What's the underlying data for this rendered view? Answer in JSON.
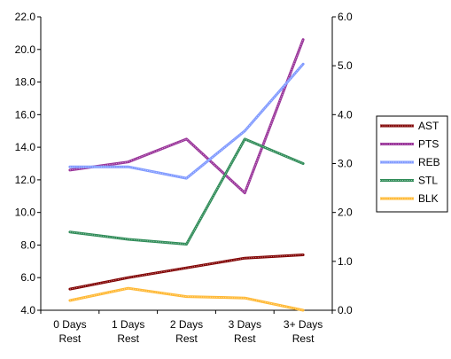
{
  "chart_data": {
    "type": "line",
    "title": "",
    "categories": [
      "0 Days Rest",
      "1 Days Rest",
      "2 Days Rest",
      "3 Days Rest",
      "3+ Days Rest"
    ],
    "category_lines": [
      [
        "0 Days",
        "Rest"
      ],
      [
        "1 Days",
        "Rest"
      ],
      [
        "2 Days",
        "Rest"
      ],
      [
        "3 Days",
        "Rest"
      ],
      [
        "3+ Days",
        "Rest"
      ]
    ],
    "y_left": {
      "min": 4.0,
      "max": 22.0,
      "step": 2.0,
      "ticks": [
        "4.0",
        "6.0",
        "8.0",
        "10.0",
        "12.0",
        "14.0",
        "16.0",
        "18.0",
        "20.0",
        "22.0"
      ]
    },
    "y_right": {
      "min": 0.0,
      "max": 6.0,
      "step": 1.0,
      "ticks": [
        "0.0",
        "1.0",
        "2.0",
        "3.0",
        "4.0",
        "5.0",
        "6.0"
      ]
    },
    "grid": false,
    "legend_position": "right",
    "series": [
      {
        "name": "AST",
        "axis": "left",
        "color": "#800000",
        "values": [
          5.3,
          6.0,
          6.6,
          7.2,
          7.4
        ]
      },
      {
        "name": "PTS",
        "axis": "left",
        "color": "#993399",
        "values": [
          12.6,
          13.1,
          14.5,
          11.2,
          20.6
        ]
      },
      {
        "name": "REB",
        "axis": "left",
        "color": "#7f99ff",
        "values": [
          12.8,
          12.8,
          12.1,
          15.0,
          19.1
        ]
      },
      {
        "name": "STL",
        "axis": "right",
        "color": "#2e8b57",
        "values": [
          1.6,
          1.45,
          1.35,
          3.5,
          3.0
        ]
      },
      {
        "name": "BLK",
        "axis": "right",
        "color": "#ffb833",
        "values": [
          0.2,
          0.45,
          0.28,
          0.25,
          0.0
        ]
      }
    ]
  }
}
